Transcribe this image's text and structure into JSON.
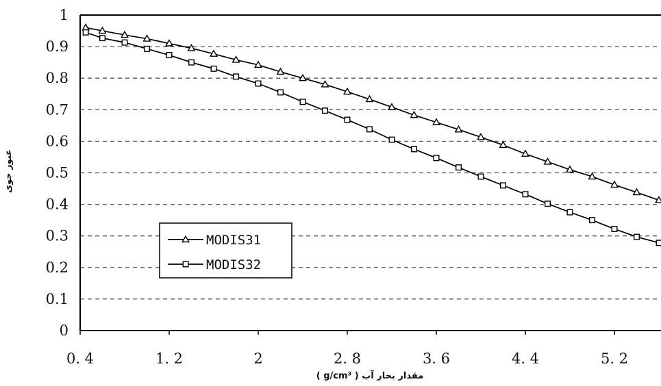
{
  "chart_data": {
    "type": "line",
    "title": "",
    "xlabel": "مقدار بخار آب ( g/cm³ )",
    "ylabel": "عبور جوی",
    "xlim": [
      0.4,
      5.6
    ],
    "ylim": [
      0,
      1
    ],
    "x_ticks": [
      "0.4",
      "1.2",
      "2",
      "2.8",
      "3.6",
      "4.4",
      "5.2"
    ],
    "y_ticks": [
      "0",
      "0.1",
      "0.2",
      "0.3",
      "0.4",
      "0.5",
      "0.6",
      "0.7",
      "0.8",
      "0.9",
      "1"
    ],
    "grid": "horizontal dashed",
    "legend_position": "lower-left",
    "x": [
      0.45,
      0.6,
      0.8,
      1.0,
      1.2,
      1.4,
      1.6,
      1.8,
      2.0,
      2.2,
      2.4,
      2.6,
      2.8,
      3.0,
      3.2,
      3.4,
      3.6,
      3.8,
      4.0,
      4.2,
      4.4,
      4.6,
      4.8,
      5.0,
      5.2,
      5.4,
      5.6
    ],
    "series": [
      {
        "name": "MODIS31",
        "marker": "triangle",
        "values": [
          0.96,
          0.95,
          0.937,
          0.925,
          0.91,
          0.895,
          0.877,
          0.858,
          0.842,
          0.82,
          0.8,
          0.78,
          0.757,
          0.733,
          0.708,
          0.683,
          0.66,
          0.637,
          0.613,
          0.588,
          0.56,
          0.535,
          0.51,
          0.488,
          0.462,
          0.438,
          0.413
        ]
      },
      {
        "name": "MODIS32",
        "marker": "square",
        "values": [
          0.945,
          0.927,
          0.913,
          0.893,
          0.873,
          0.85,
          0.83,
          0.805,
          0.783,
          0.755,
          0.725,
          0.697,
          0.668,
          0.638,
          0.605,
          0.575,
          0.547,
          0.517,
          0.488,
          0.46,
          0.432,
          0.402,
          0.375,
          0.35,
          0.322,
          0.297,
          0.278
        ]
      }
    ]
  }
}
